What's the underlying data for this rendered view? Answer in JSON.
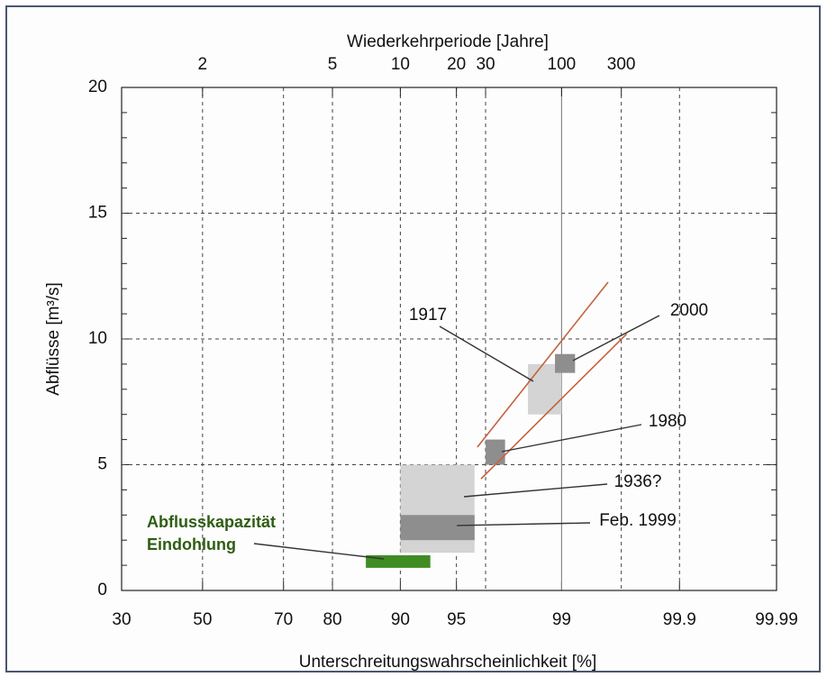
{
  "chart_data": {
    "type": "range-boxes",
    "title": "Wiederkehrperiode [Jahre]",
    "xlabel": "Unterschreitungswahrscheinlichkeit [%]",
    "ylabel": "Abflüsse [m³/s]",
    "xscale": "probit",
    "xlim": [
      30,
      99.99
    ],
    "xticks": [
      30,
      50,
      70,
      80,
      90,
      95,
      99,
      99.9,
      99.99
    ],
    "x2scale": "return-period",
    "x2ticks": [
      2,
      5,
      10,
      20,
      30,
      100,
      300
    ],
    "ylim": [
      0,
      20
    ],
    "yticks": [
      0,
      5,
      10,
      15,
      20
    ],
    "yticks_minor": [
      1,
      2,
      3,
      4,
      6,
      7,
      8,
      9,
      11,
      12,
      13,
      14,
      16,
      17,
      18,
      19
    ],
    "grid": true,
    "boxes": [
      {
        "x": [
          90,
          96.1
        ],
        "y": [
          1.5,
          5.0
        ],
        "color": "#d4d4d4"
      },
      {
        "x": [
          90,
          96.1
        ],
        "y": [
          2.0,
          3.0
        ],
        "color": "#8e8e8e"
      },
      {
        "x": [
          98.25,
          99.0
        ],
        "y": [
          7.0,
          9.0
        ],
        "color": "#d4d4d4"
      },
      {
        "x": [
          96.67,
          97.5
        ],
        "y": [
          5.0,
          6.0
        ],
        "color": "#8e8e8e"
      },
      {
        "x": [
          98.88,
          99.21
        ],
        "y": [
          8.65,
          9.4
        ],
        "color": "#8e8e8e"
      },
      {
        "x": [
          85.5,
          93.0
        ],
        "y": [
          0.9,
          1.4
        ],
        "color": "#3f8c22"
      }
    ],
    "lines": [
      {
        "x": [
          96.25,
          99.57
        ],
        "y": [
          5.7,
          12.26
        ],
        "color": "#c4623e"
      },
      {
        "x": [
          96.44,
          99.7
        ],
        "y": [
          4.44,
          10.2
        ],
        "color": "#c4623e"
      }
    ],
    "annotations": [
      {
        "text": [
          "1917"
        ],
        "color": "#111111"
      },
      {
        "text": [
          "2000"
        ],
        "color": "#111111"
      },
      {
        "text": [
          "1980"
        ],
        "color": "#111111"
      },
      {
        "text": [
          "1936?"
        ],
        "color": "#111111"
      },
      {
        "text": [
          "Feb. 1999"
        ],
        "color": "#111111"
      },
      {
        "text": [
          "Abflusskapazität",
          "Eindohlung"
        ],
        "color": "#2e5d12"
      }
    ]
  }
}
